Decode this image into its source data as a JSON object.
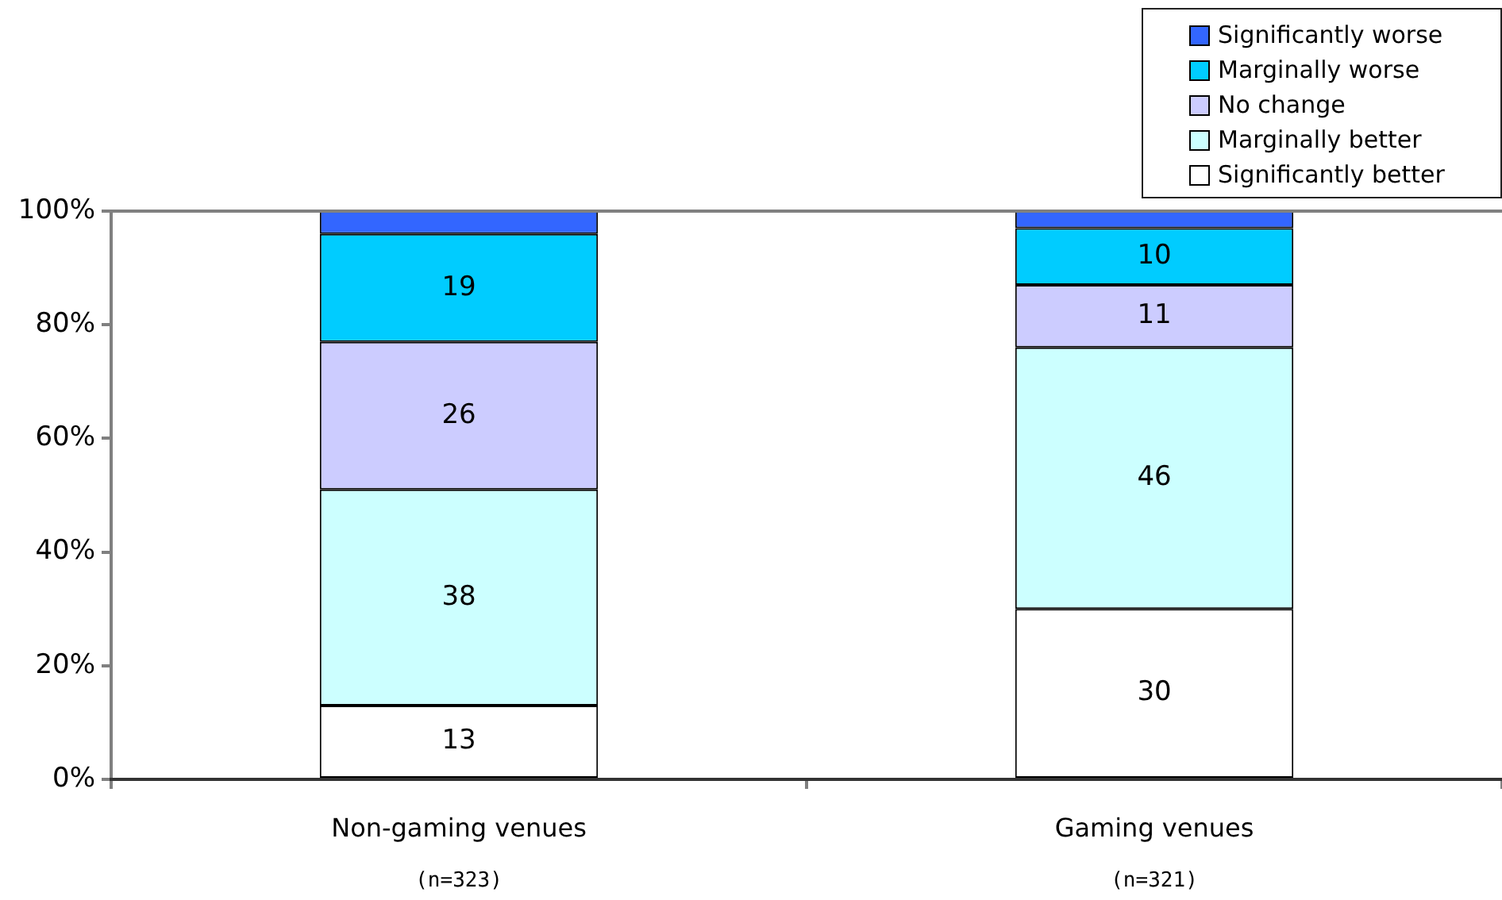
{
  "chart_data": {
    "type": "bar",
    "stacked": true,
    "categories": [
      "Non-gaming venues",
      "Gaming venues"
    ],
    "series": [
      {
        "name": "Significantly better",
        "color": "#ffffff",
        "values": [
          13,
          30
        ],
        "value_labels": [
          "13",
          "30"
        ]
      },
      {
        "name": "Marginally better",
        "color": "#ccffff",
        "values": [
          38,
          46
        ],
        "value_labels": [
          "38",
          "46"
        ]
      },
      {
        "name": "No change",
        "color": "#ccccff",
        "values": [
          26,
          11
        ],
        "value_labels": [
          "26",
          "11"
        ]
      },
      {
        "name": "Marginally worse",
        "color": "#00ccff",
        "values": [
          19,
          10
        ],
        "value_labels": [
          "19",
          "10"
        ]
      },
      {
        "name": "Significantly worse",
        "color": "#3366ff",
        "values": [
          4,
          3
        ],
        "value_labels": [
          null,
          null
        ]
      }
    ],
    "ylim": [
      0,
      100
    ],
    "yticks": [
      {
        "value": 0,
        "label": "0%"
      },
      {
        "value": 20,
        "label": "20%"
      },
      {
        "value": 40,
        "label": "40%"
      },
      {
        "value": 60,
        "label": "60%"
      },
      {
        "value": 80,
        "label": "80%"
      },
      {
        "value": 100,
        "label": "100%"
      }
    ],
    "legend": "top right",
    "annotations": [
      "(n=323)",
      "(n=321)"
    ]
  }
}
